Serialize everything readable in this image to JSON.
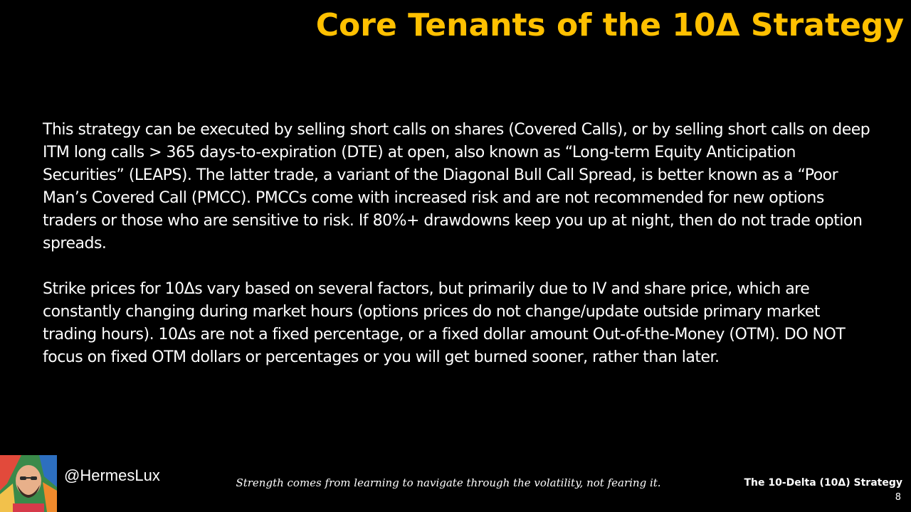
{
  "slide": {
    "title": "Core Tenants of the 10Δ Strategy",
    "paragraphs": [
      "This strategy can be executed by selling short calls on shares (Covered Calls), or by selling short calls on deep ITM long calls > 365 days-to-expiration (DTE) at open, also known as “Long-term Equity Anticipation Securities” (LEAPS). The latter trade, a variant of the Diagonal Bull Call Spread, is better known as a “Poor Man’s Covered Call (PMCC). PMCCs come with increased risk and are not recommended for new options traders or those who are sensitive to risk. If 80%+ drawdowns keep you up at night, then do not trade option spreads.",
      "Strike prices for 10Δs vary based on several factors, but primarily due to IV and share price, which are constantly changing during market hours (options prices do not change/update outside primary market trading hours). 10Δs are not a fixed percentage, or a fixed dollar amount Out-of-the-Money (OTM). DO NOT focus on fixed OTM dollars or percentages or you will get burned sooner, rather than later."
    ]
  },
  "footer": {
    "handle": "@HermesLux",
    "quote": "Strength comes from learning to navigate through the volatility, not fearing it.",
    "deck_title": "The 10-Delta (10Δ) Strategy",
    "page_number": "8"
  },
  "colors": {
    "background": "#000000",
    "title": "#FFC000",
    "text": "#FFFFFF"
  },
  "icons": {
    "avatar": "author-avatar"
  }
}
